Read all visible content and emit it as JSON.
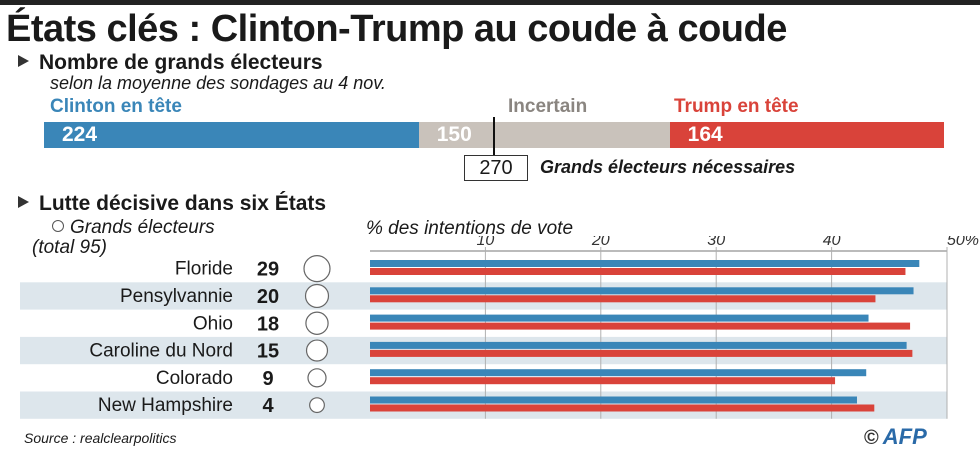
{
  "title": "États clés : Clinton-Trump au coude à coude",
  "section1": {
    "heading": "Nombre de grands électeurs",
    "subtitle": "selon la moyenne des sondages au 4 nov.",
    "labels": {
      "clinton": "Clinton en tête",
      "uncertain": "Incertain",
      "trump": "Trump en tête"
    },
    "needed": {
      "value": "270",
      "label": "Grands électeurs nécessaires"
    }
  },
  "section2": {
    "heading": "Lutte décisive dans six États",
    "legend_line1": "Grands électeurs",
    "legend_line2": "(total 95)",
    "pct_title": "% des intentions de vote"
  },
  "source": "Source : realclearpolitics",
  "logo": {
    "copyright": "©",
    "text": "AFP"
  },
  "colors": {
    "clinton": "#3a86b8",
    "trump": "#d9433a",
    "uncertain": "#c9c2bb",
    "row_shade": "#dde6ec"
  },
  "chart_data": [
    {
      "type": "bar",
      "orientation": "horizontal-stacked",
      "categories": [
        "Clinton en tête",
        "Incertain",
        "Trump en tête"
      ],
      "values": [
        224,
        150,
        164
      ],
      "threshold": 270
    },
    {
      "type": "bar",
      "orientation": "horizontal",
      "categories": [
        "Floride",
        "Pensylvannie",
        "Ohio",
        "Caroline du Nord",
        "Colorado",
        "New Hampshire"
      ],
      "electors": [
        29,
        20,
        18,
        15,
        9,
        4
      ],
      "series": [
        {
          "color": "#3a86b8",
          "values": [
            47.6,
            47.1,
            43.2,
            46.5,
            43.0,
            42.2
          ]
        },
        {
          "color": "#d9433a",
          "values": [
            46.4,
            43.8,
            46.8,
            47.0,
            40.3,
            43.7
          ]
        }
      ],
      "xticks": [
        10,
        20,
        30,
        40,
        50
      ],
      "xtick_labels": [
        "10",
        "20",
        "30",
        "40",
        "50%"
      ],
      "xlim": [
        0,
        50
      ]
    }
  ]
}
